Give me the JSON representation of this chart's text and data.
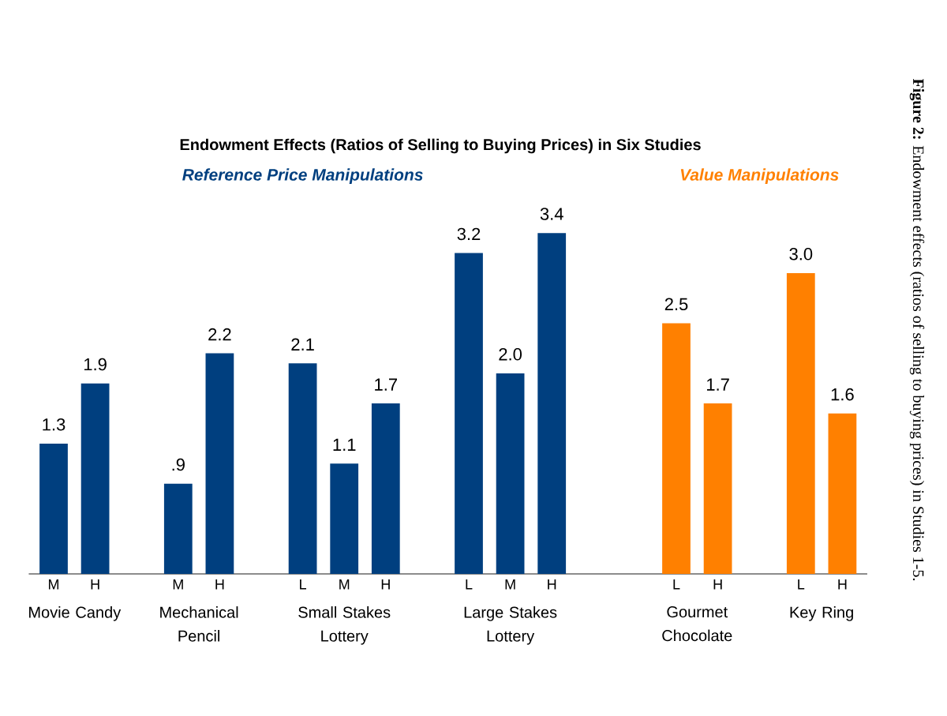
{
  "chart_data": {
    "type": "bar",
    "title": "Endowment Effects (Ratios of Selling to Buying Prices) in Six Studies",
    "categories": [
      "M",
      "H",
      null,
      "M",
      "H",
      null,
      "L",
      "M",
      "H",
      null,
      "L",
      "M",
      "H",
      null,
      null,
      "L",
      "H",
      null,
      "L",
      "H"
    ],
    "values": [
      1.3,
      1.9,
      null,
      0.9,
      2.2,
      null,
      2.1,
      1.1,
      1.7,
      null,
      3.2,
      2.0,
      3.4,
      null,
      null,
      2.5,
      1.7,
      null,
      3.0,
      1.6
    ],
    "colors": [
      "#003f7f",
      "#003f7f",
      null,
      "#003f7f",
      "#003f7f",
      null,
      "#003f7f",
      "#003f7f",
      "#003f7f",
      null,
      "#003f7f",
      "#003f7f",
      "#003f7f",
      null,
      null,
      "#ff8000",
      "#ff8000",
      null,
      "#ff8000",
      "#ff8000"
    ],
    "value_labels": [
      "1.3",
      "1.9",
      null,
      ".9",
      "2.2",
      null,
      "2.1",
      "1.1",
      "1.7",
      null,
      "3.2",
      "2.0",
      "3.4",
      null,
      null,
      "2.5",
      "1.7",
      null,
      "3.0",
      "1.6"
    ],
    "relative": false,
    "annotations": [
      "Movie Candy",
      "Mechanical Pencil",
      "Small Stakes Lottery",
      "Large Stakes Lottery",
      "Gourmet Chocolate",
      "Key Ring",
      "Reference Price Manipulations",
      "Value Manipulations",
      "**Figure 2:** Endowment effects (ratios of selling to buying prices) in Studies 1-5."
    ]
  }
}
